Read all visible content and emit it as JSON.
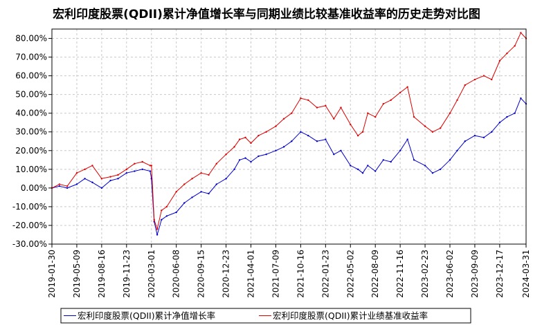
{
  "chart_data": {
    "type": "line",
    "title": "宏利印度股票(QDII)累计净值增长率与同期业绩比较基准收益率的历史走势对比图",
    "xlabel": "",
    "ylabel": "",
    "ylim": [
      -30,
      85
    ],
    "grid": true,
    "legend_position": "bottom",
    "y_ticks": [
      -30,
      -20,
      -10,
      0,
      10,
      20,
      30,
      40,
      50,
      60,
      70,
      80
    ],
    "y_tick_labels": [
      "-30.00%",
      "-20.00%",
      "-10.00%",
      "0.00%",
      "10.00%",
      "20.00%",
      "30.00%",
      "40.00%",
      "50.00%",
      "60.00%",
      "70.00%",
      "80.00%"
    ],
    "x_tick_labels": [
      "2019-01-30",
      "2019-05-09",
      "2019-08-16",
      "2019-11-23",
      "2020-03-01",
      "2020-06-08",
      "2020-09-15",
      "2020-12-23",
      "2021-04-01",
      "2021-07-09",
      "2021-10-16",
      "2022-01-23",
      "2022-05-02",
      "2022-08-09",
      "2022-11-16",
      "2023-02-23",
      "2023-06-02",
      "2023-09-09",
      "2023-12-17",
      "2024-03-31"
    ],
    "x": [
      "2019-01-30",
      "2019-03-01",
      "2019-04-01",
      "2019-05-09",
      "2019-06-10",
      "2019-07-10",
      "2019-08-16",
      "2019-09-20",
      "2019-10-20",
      "2019-11-23",
      "2019-12-25",
      "2020-01-25",
      "2020-02-25",
      "2020-03-01",
      "2020-03-12",
      "2020-03-24",
      "2020-04-10",
      "2020-05-01",
      "2020-06-08",
      "2020-07-10",
      "2020-08-10",
      "2020-09-15",
      "2020-10-15",
      "2020-11-15",
      "2020-12-23",
      "2021-01-25",
      "2021-02-15",
      "2021-03-10",
      "2021-04-01",
      "2021-05-01",
      "2021-06-01",
      "2021-07-09",
      "2021-08-10",
      "2021-09-10",
      "2021-10-16",
      "2021-11-15",
      "2021-12-20",
      "2022-01-23",
      "2022-02-25",
      "2022-03-25",
      "2022-05-02",
      "2022-06-01",
      "2022-06-20",
      "2022-07-10",
      "2022-08-09",
      "2022-09-10",
      "2022-10-10",
      "2022-11-16",
      "2022-12-15",
      "2023-01-10",
      "2023-02-23",
      "2023-03-25",
      "2023-04-25",
      "2023-06-02",
      "2023-07-01",
      "2023-08-01",
      "2023-09-09",
      "2023-10-15",
      "2023-11-15",
      "2023-12-17",
      "2024-01-15",
      "2024-02-15",
      "2024-03-10",
      "2024-03-31"
    ],
    "series": [
      {
        "name": "宏利印度股票(QDII)累计净值增长率",
        "color": "#0000cc",
        "values": [
          0,
          1,
          0,
          2,
          5,
          3,
          0,
          4,
          5,
          8,
          9,
          10,
          9,
          5,
          -18,
          -25,
          -17,
          -15,
          -13,
          -8,
          -5,
          -2,
          -3,
          2,
          5,
          10,
          15,
          16,
          14,
          17,
          18,
          20,
          22,
          25,
          30,
          28,
          25,
          26,
          18,
          20,
          12,
          10,
          8,
          12,
          9,
          15,
          14,
          20,
          26,
          15,
          12,
          8,
          10,
          15,
          20,
          25,
          28,
          27,
          30,
          35,
          38,
          40,
          48,
          45
        ]
      },
      {
        "name": "宏利印度股票(QDII)累计业绩基准收益率",
        "color": "#dd0000",
        "values": [
          0,
          2,
          1,
          8,
          10,
          12,
          5,
          6,
          7,
          10,
          13,
          14,
          12,
          12,
          -17,
          -22,
          -12,
          -10,
          -2,
          2,
          5,
          8,
          7,
          13,
          18,
          22,
          26,
          27,
          24,
          28,
          30,
          33,
          37,
          40,
          48,
          47,
          43,
          44,
          37,
          43,
          34,
          28,
          30,
          40,
          38,
          45,
          47,
          51,
          54,
          38,
          33,
          30,
          32,
          40,
          47,
          55,
          58,
          60,
          58,
          68,
          72,
          76,
          83,
          80
        ]
      }
    ]
  }
}
